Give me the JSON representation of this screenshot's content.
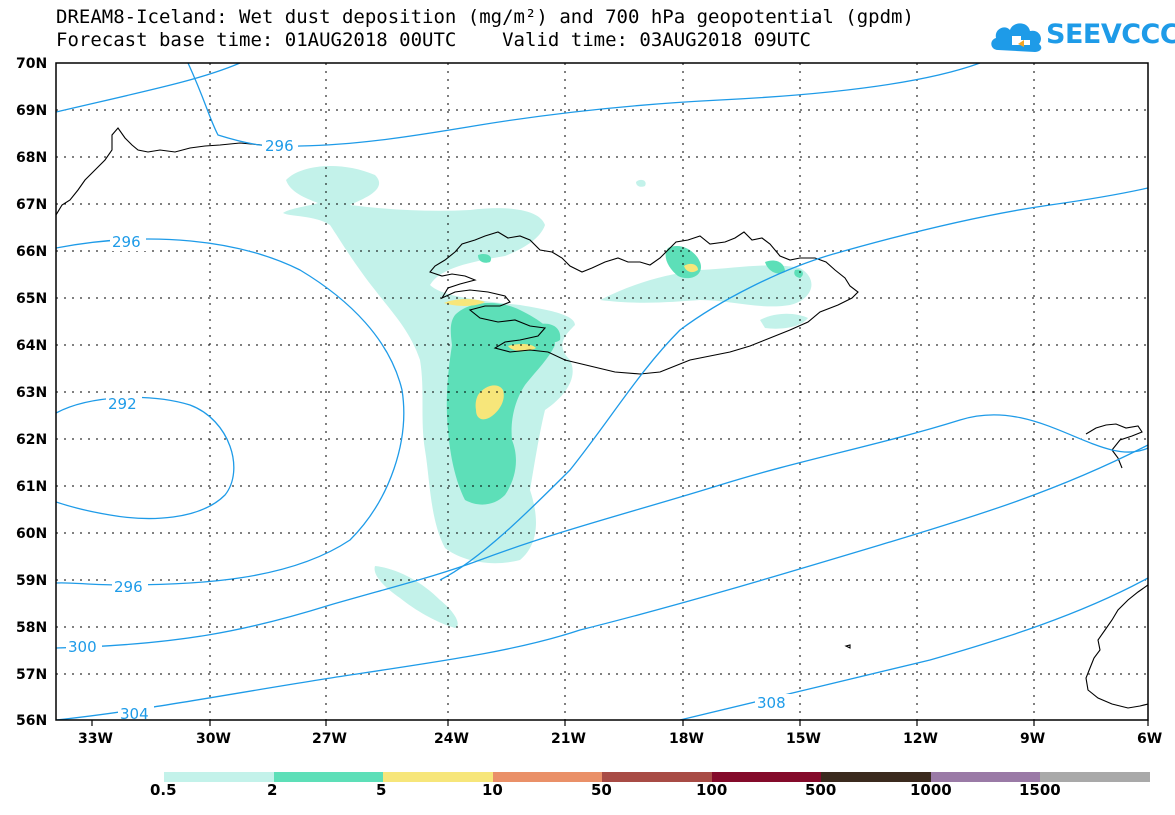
{
  "title": {
    "line1": "DREAM8-Iceland: Wet dust deposition (mg/m²) and 700 hPa geopotential (gpdm)",
    "line2": "Forecast base time: 01AUG2018 00UTC    Valid time: 03AUG2018 09UTC"
  },
  "logo": {
    "text": "SEEVCCC",
    "color": "#1e9be8"
  },
  "map": {
    "lat_labels": [
      "70N",
      "69N",
      "68N",
      "67N",
      "66N",
      "65N",
      "64N",
      "63N",
      "62N",
      "61N",
      "60N",
      "59N",
      "58N",
      "57N",
      "56N"
    ],
    "lon_labels": [
      "33W",
      "30W",
      "27W",
      "24W",
      "21W",
      "18W",
      "15W",
      "12W",
      "9W",
      "6W"
    ],
    "contour_color": "#1e9be8",
    "contour_labels": [
      "296",
      "296",
      "292",
      "296",
      "300",
      "304",
      "308"
    ]
  },
  "colorbar": {
    "labels": [
      "0.5",
      "2",
      "5",
      "10",
      "50",
      "100",
      "500",
      "1000",
      "1500"
    ],
    "colors": [
      "#c3f2ea",
      "#5ddfb8",
      "#f7e67a",
      "#ea9068",
      "#a84b45",
      "#840a2a",
      "#3b2a1e",
      "#9a7aa6",
      "#a9a9a9"
    ]
  }
}
